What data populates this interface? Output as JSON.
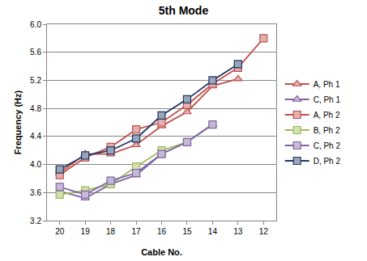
{
  "chart_data": {
    "type": "line",
    "title": "5th Mode",
    "x_label": "Cable No.",
    "y_label": "Frequency (Hz)",
    "categories": [
      "20",
      "19",
      "18",
      "17",
      "16",
      "15",
      "14",
      "13",
      "12"
    ],
    "series": [
      {
        "name": "A, Ph 1",
        "color": "#c0504d",
        "marker": "triangle",
        "values": [
          3.88,
          4.15,
          4.15,
          4.28,
          4.55,
          4.75,
          5.12,
          5.22,
          null
        ]
      },
      {
        "name": "C, Ph 1",
        "color": "#8064a2",
        "marker": "triangle",
        "values": [
          3.62,
          3.52,
          3.72,
          3.85,
          4.15,
          4.32,
          4.57,
          null,
          null
        ]
      },
      {
        "name": "A, Ph 2",
        "color": "#c0504d",
        "marker": "square",
        "values": [
          3.85,
          4.1,
          4.25,
          4.5,
          4.6,
          4.85,
          5.15,
          5.38,
          5.8
        ]
      },
      {
        "name": "B, Ph 2",
        "color": "#9bbb59",
        "marker": "square",
        "values": [
          3.57,
          3.63,
          3.72,
          3.97,
          4.2,
          4.32,
          null,
          null,
          null
        ]
      },
      {
        "name": "C, Ph 2",
        "color": "#8064a2",
        "marker": "square",
        "values": [
          3.68,
          3.57,
          3.77,
          3.88,
          4.15,
          4.32,
          4.57,
          null,
          null
        ]
      },
      {
        "name": "D, Ph 2",
        "color": "#1f3864",
        "marker": "square",
        "values": [
          3.93,
          4.13,
          4.2,
          4.37,
          4.7,
          4.93,
          5.2,
          5.43,
          null
        ]
      }
    ],
    "ylim": [
      3.2,
      6.0
    ],
    "yticks": [
      3.2,
      3.6,
      {
        "value": 4.0,
        "label": "4.0"
      },
      4.4,
      4.8,
      5.2,
      5.6,
      {
        "value": 6.0,
        "label": "6.0"
      }
    ],
    "grid": true,
    "legend": "right"
  }
}
